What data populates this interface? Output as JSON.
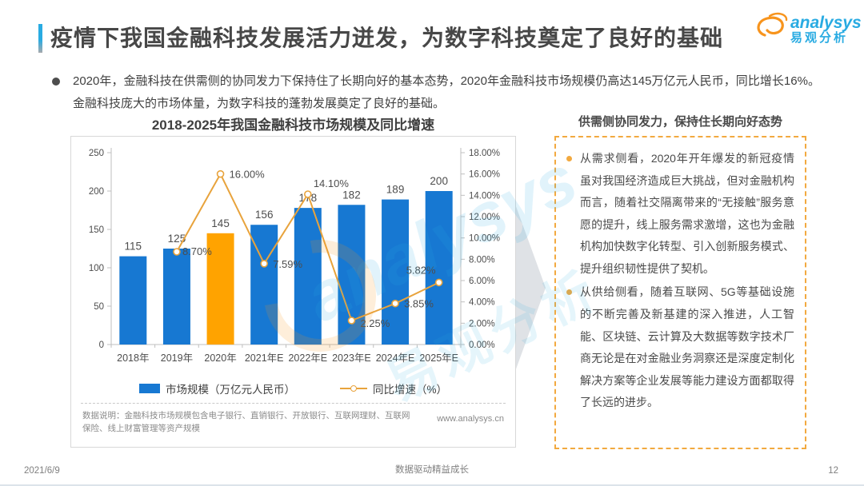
{
  "header": {
    "title": "疫情下我国金融科技发展活力迸发，为数字科技奠定了良好的基础",
    "logo": {
      "brand_en": "analysys",
      "brand_cn": "易观分析"
    }
  },
  "summary": {
    "bullet": "2020年，金融科技在供需侧的协同发力下保持住了长期向好的基本态势，2020年金融科技市场规模仍高达145万亿元人民币，同比增长16%。金融科技庞大的市场体量，为数字科技的蓬勃发展奠定了良好的基础。"
  },
  "chart_data": {
    "type": "bar+line",
    "title": "2018-2025年我国金融科技市场规模及同比增速",
    "categories": [
      "2018年",
      "2019年",
      "2020年",
      "2021年E",
      "2022年E",
      "2023年E",
      "2024年E",
      "2025年E"
    ],
    "series": [
      {
        "name": "市场规模（万亿元人民币）",
        "type": "bar",
        "axis": "left",
        "values": [
          115,
          125,
          145,
          156,
          178,
          182,
          189,
          200
        ],
        "highlight_index": 2
      },
      {
        "name": "同比增速（%）",
        "type": "line",
        "axis": "right",
        "values": [
          null,
          8.7,
          16.0,
          7.59,
          14.1,
          2.25,
          3.85,
          5.82
        ],
        "labels": [
          null,
          "8.70%",
          "16.00%",
          "7.59%",
          "14.10%",
          "2.25%",
          "3.85%",
          "5.82%"
        ]
      }
    ],
    "left_axis": {
      "min": 0,
      "max": 250,
      "step": 50,
      "ticks": [
        "0",
        "50",
        "100",
        "150",
        "200",
        "250"
      ]
    },
    "right_axis": {
      "min": 0,
      "max": 18,
      "step": 2,
      "ticks": [
        "0.00%",
        "2.00%",
        "4.00%",
        "6.00%",
        "8.00%",
        "10.00%",
        "12.00%",
        "14.00%",
        "16.00%",
        "18.00%"
      ]
    },
    "colors": {
      "bar": "#1778D2",
      "bar_highlight": "#FFA300",
      "line": "#E8A33C"
    },
    "legend_position": "bottom",
    "grid": false,
    "footnote": "数据说明：金融科技市场规模包含电子银行、直销银行、开放银行、互联网理财、互联网保险、线上财富管理等资产规模",
    "source_url": "www.analysys.cn"
  },
  "right_panel": {
    "heading": "供需侧协同发力，保持住长期向好态势",
    "bullets": [
      "从需求侧看，2020年开年爆发的新冠疫情虽对我国经济造成巨大挑战，但对金融机构而言，随着社交隔离带来的“无接触”服务意愿的提升，线上服务需求激增，这也为金融机构加快数字化转型、引入创新服务模式、提升组织韧性提供了契机。",
      "从供给侧看，随着互联网、5G等基础设施的不断完善及新基建的深入推进，人工智能、区块链、云计算及大数据等数字技术厂商无论是在对金融业务洞察还是深度定制化解决方案等企业发展等能力建设方面都取得了长远的进步。"
    ]
  },
  "watermark": {
    "text_en": "analysys",
    "text_cn": "易观分析"
  },
  "footer": {
    "date": "2021/6/9",
    "slogan": "数据驱动精益成长",
    "page": "12"
  }
}
